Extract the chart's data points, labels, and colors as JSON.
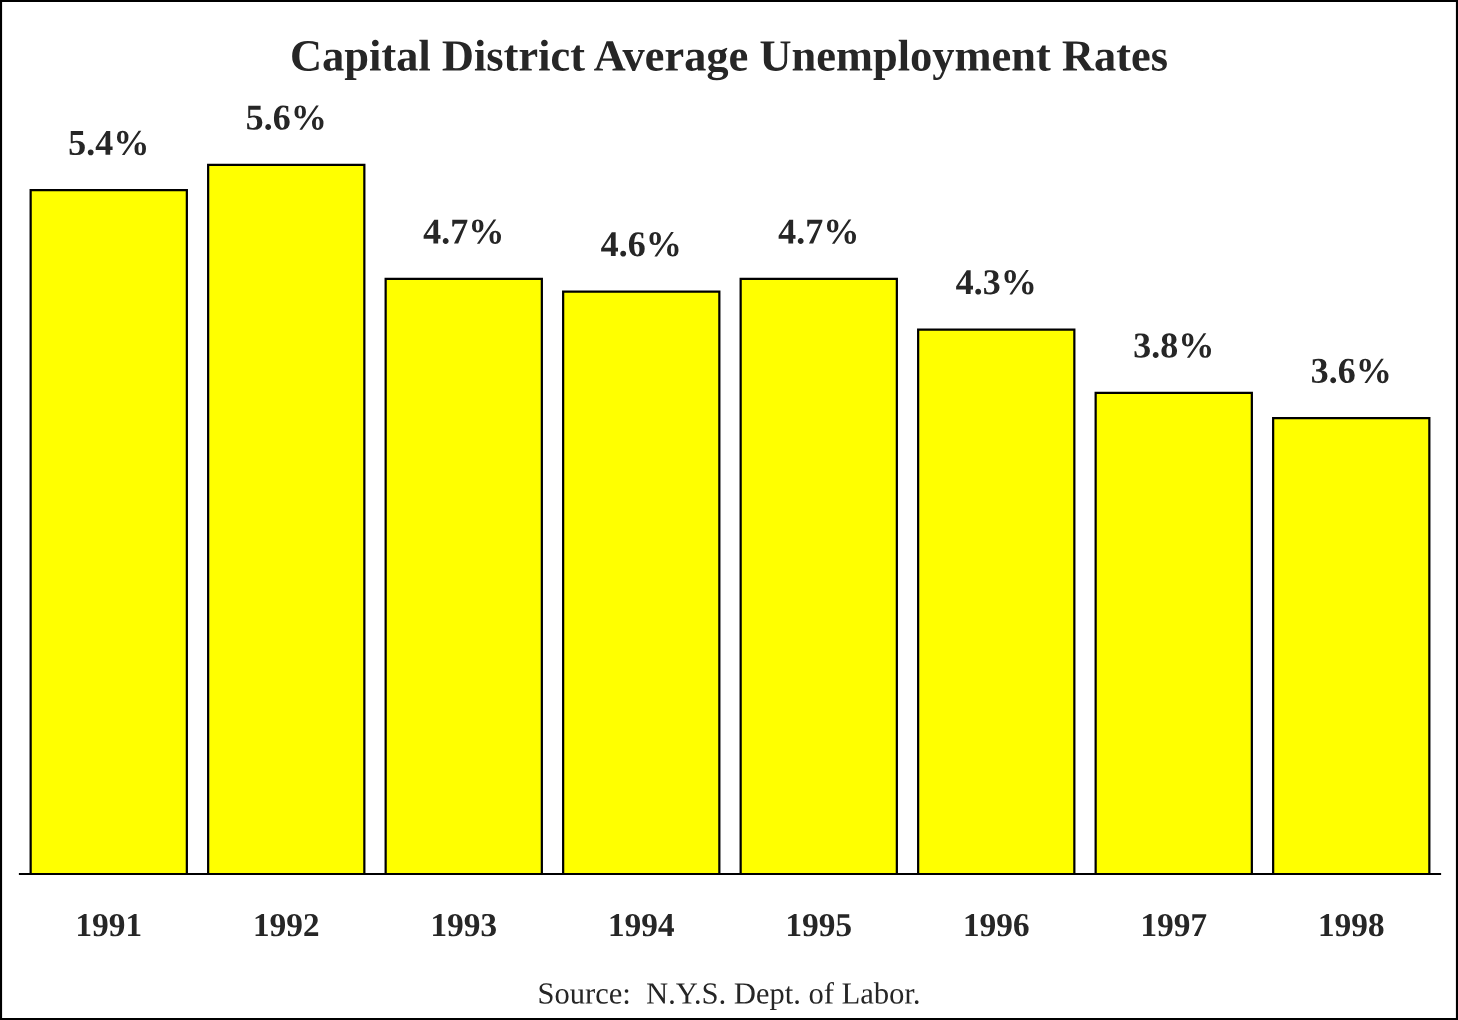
{
  "chart_data": {
    "type": "bar",
    "title": "Capital District Average Unemployment Rates",
    "categories": [
      "1991",
      "1992",
      "1993",
      "1994",
      "1995",
      "1996",
      "1997",
      "1998"
    ],
    "values": [
      5.4,
      5.6,
      4.7,
      4.6,
      4.7,
      4.3,
      3.8,
      3.6
    ],
    "value_labels": [
      "5.4%",
      "5.6%",
      "4.7%",
      "4.6%",
      "4.7%",
      "4.3%",
      "3.8%",
      "3.6%"
    ],
    "color": "#ffff00",
    "tick_labels": "x",
    "grid": false,
    "legend": false,
    "annotations": [
      "Source:  N.Y.S. Dept. of Labor."
    ]
  }
}
